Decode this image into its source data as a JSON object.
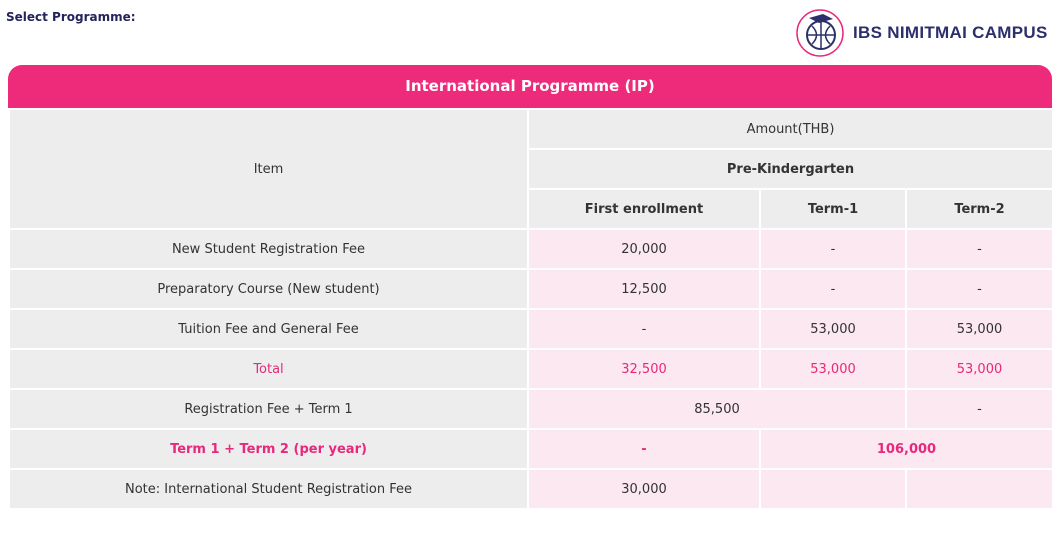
{
  "select_label": "Select Programme:",
  "logo": {
    "name": "IBS NIMITMAI CAMPUS",
    "emblem_text": "IBS INTERKIDS BILINGUAL SCHOOL"
  },
  "programme_title": "International Programme (IP)",
  "colors": {
    "accent": "#ee2a7b",
    "item_bg": "#ededed",
    "value_bg": "#fce8f1"
  },
  "table": {
    "item_header": "Item",
    "amount_header": "Amount(THB)",
    "level": "Pre-Kindergarten",
    "columns": [
      "First enrollment",
      "Term-1",
      "Term-2"
    ],
    "rows": [
      {
        "item": "New Student Registration Fee",
        "values": [
          "20,000",
          "-",
          "-"
        ]
      },
      {
        "item": "Preparatory Course (New student)",
        "values": [
          "12,500",
          "-",
          "-"
        ]
      },
      {
        "item": "Tuition Fee and General Fee",
        "values": [
          "-",
          "53,000",
          "53,000"
        ]
      },
      {
        "item": "Total",
        "values": [
          "32,500",
          "53,000",
          "53,000"
        ]
      },
      {
        "item": "Registration Fee + Term 1",
        "values": [
          "85,500",
          "-"
        ]
      },
      {
        "item": "Term 1 + Term 2 (per year)",
        "values": [
          "-",
          "106,000"
        ]
      },
      {
        "item": "Note: International Student Registration Fee",
        "values": [
          "30,000",
          "",
          ""
        ]
      }
    ]
  }
}
